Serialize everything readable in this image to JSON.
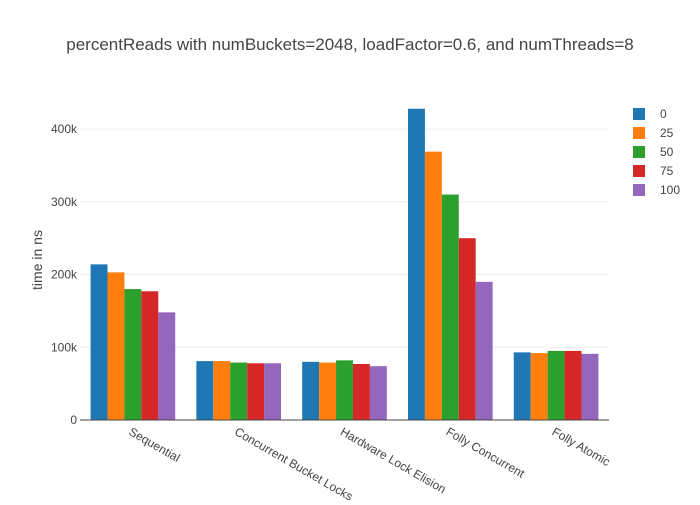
{
  "chart_data": {
    "type": "bar",
    "title": "percentReads with numBuckets=2048, loadFactor=0.6, and numThreads=8",
    "xlabel": "",
    "ylabel": "time in ns",
    "categories": [
      "Sequential",
      "Concurrent Bucket Locks",
      "Hardware Lock Elision",
      "Folly Concurrent",
      "Folly Atomic"
    ],
    "ylim": [
      0,
      440000
    ],
    "yticks": [
      0,
      100000,
      200000,
      300000,
      400000
    ],
    "ytick_labels": [
      "0",
      "100k",
      "200k",
      "300k",
      "400k"
    ],
    "grid": true,
    "legend_position": "top-right",
    "series": [
      {
        "name": "0",
        "color": "#1f77b4",
        "values": [
          214000,
          81000,
          80000,
          428000,
          93000
        ]
      },
      {
        "name": "25",
        "color": "#ff7f0e",
        "values": [
          203000,
          81000,
          79000,
          369000,
          92000
        ]
      },
      {
        "name": "50",
        "color": "#2ca02c",
        "values": [
          180000,
          79000,
          82000,
          310000,
          95000
        ]
      },
      {
        "name": "75",
        "color": "#d62728",
        "values": [
          177000,
          78000,
          77000,
          250000,
          95000
        ]
      },
      {
        "name": "100",
        "color": "#9467bd",
        "values": [
          148000,
          78000,
          74000,
          190000,
          91000
        ]
      }
    ]
  }
}
